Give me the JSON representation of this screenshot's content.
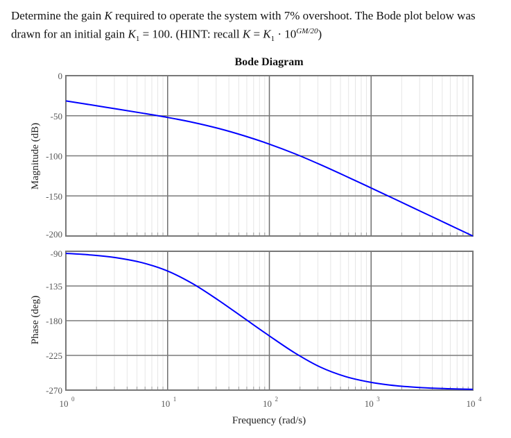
{
  "question": {
    "line1_a": "Determine the gain ",
    "k": "K",
    "line1_b": " required to operate the system with 7% overshoot. The Bode plot below was drawn for an initial gain ",
    "k1": "K",
    "sub1": "1",
    "eq1": " = 100. (HINT: recall ",
    "k2": "K",
    "eq2": " = ",
    "k3": "K",
    "sub2": "1",
    "dot": " · 10",
    "exp": "GM/20",
    "close": ")"
  },
  "chart_data": [
    {
      "type": "line",
      "title": "Bode Diagram",
      "ylabel": "Magnitude (dB)",
      "xscale": "log",
      "xlim": [
        1,
        10000
      ],
      "ylim": [
        -200,
        0
      ],
      "yticks": [
        "0",
        "-50",
        "-100",
        "-150",
        "-200"
      ],
      "ytick_values": [
        0,
        -50,
        -100,
        -150,
        -200
      ],
      "grid": true,
      "color": "#0000ff",
      "x": [
        1,
        1.78,
        3.16,
        5.62,
        10,
        17.8,
        31.6,
        56.2,
        100,
        178,
        316,
        562,
        1000,
        1778,
        3162,
        5623,
        10000
      ],
      "y": [
        -31.5,
        -36.5,
        -41.6,
        -46.7,
        -52.1,
        -58.3,
        -65.8,
        -74.9,
        -85.4,
        -97.4,
        -110.9,
        -125.3,
        -140.1,
        -155.0,
        -170.0,
        -185.0,
        -200.0
      ]
    },
    {
      "type": "line",
      "ylabel": "Phase (deg)",
      "xlabel": "Frequency  (rad/s)",
      "xscale": "log",
      "xlim": [
        1,
        10000
      ],
      "ylim": [
        -270,
        -90
      ],
      "yticks": [
        "-90",
        "-135",
        "-180",
        "-225",
        "-270"
      ],
      "ytick_values": [
        -90,
        -135,
        -180,
        -225,
        -270
      ],
      "xticks": [
        "0",
        "1",
        "2",
        "3",
        "4"
      ],
      "xtick_base": "10",
      "grid": true,
      "color": "#0000ff",
      "x": [
        1,
        1.78,
        3.16,
        5.62,
        10,
        17.8,
        31.6,
        56.2,
        100,
        178,
        316,
        562,
        1000,
        1778,
        3162,
        5623,
        10000
      ],
      "y": [
        -92.7,
        -94.8,
        -98.4,
        -104.8,
        -115.6,
        -132.3,
        -153.5,
        -176.6,
        -199.7,
        -221.8,
        -240.1,
        -252.5,
        -260.0,
        -264.4,
        -266.8,
        -268.2,
        -269.0
      ]
    }
  ]
}
